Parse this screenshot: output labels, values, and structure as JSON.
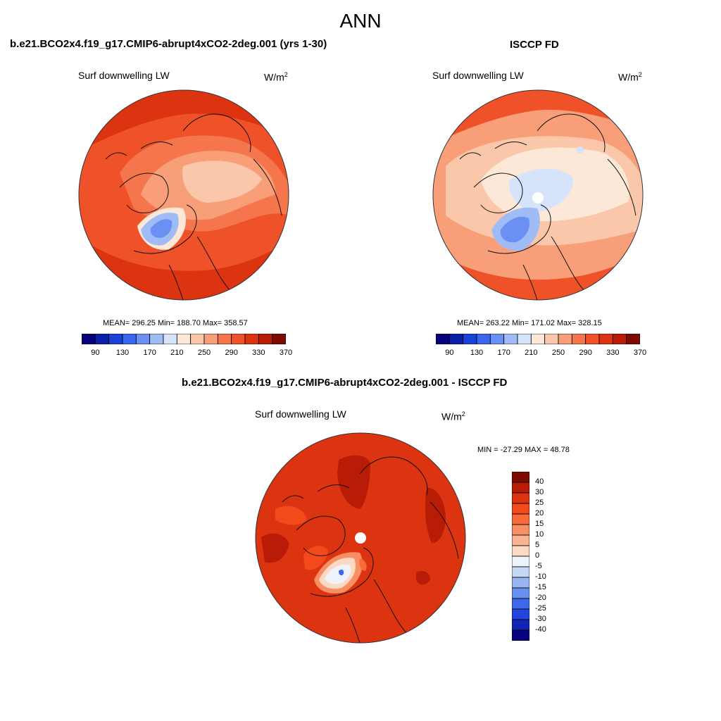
{
  "page": {
    "title": "ANN"
  },
  "panels": [
    {
      "id": "model",
      "title": "b.e21.BCO2x4.f19_g17.CMIP6-abrupt4xCO2-2deg.001 (yrs 1-30)",
      "variable": "Surf downwelling LW",
      "units_base": "W/m",
      "units_exp": "2",
      "stats": "MEAN= 296.25  Min= 188.70  Max= 358.57"
    },
    {
      "id": "obs",
      "title": "ISCCP FD",
      "variable": "Surf downwelling LW",
      "units_base": "W/m",
      "units_exp": "2",
      "stats": "MEAN= 263.22  Min= 171.02  Max= 328.15"
    },
    {
      "id": "diff",
      "title": "b.e21.BCO2x4.f19_g17.CMIP6-abrupt4xCO2-2deg.001 - ISCCP FD",
      "variable": "Surf downwelling LW",
      "units_base": "W/m",
      "units_exp": "2",
      "stats": "MIN = -27.29 MAX =  48.78"
    }
  ],
  "colorbar_abs": {
    "colors": [
      "#06037a",
      "#0a1ea6",
      "#1a42d6",
      "#3a66ee",
      "#6a90f4",
      "#a0bcf7",
      "#d6e4fb",
      "#fde8d8",
      "#fbc7ab",
      "#f89e78",
      "#f5764d",
      "#ef5128",
      "#dc3410",
      "#b81b06",
      "#7e0b02"
    ],
    "tick_labels": [
      "90",
      "130",
      "170",
      "210",
      "250",
      "290",
      "330",
      "370"
    ]
  },
  "colorbar_diff": {
    "colors": [
      "#7e0b02",
      "#b81b06",
      "#dc3410",
      "#f24a1a",
      "#f66a3c",
      "#f88e64",
      "#fab394",
      "#fcd9c2",
      "#eef2fb",
      "#c6d8f6",
      "#97b5f1",
      "#6a90ee",
      "#3f67ea",
      "#2445dc",
      "#1224b4",
      "#07037e"
    ],
    "tick_labels": [
      "40",
      "30",
      "25",
      "20",
      "15",
      "10",
      "5",
      "0",
      "-5",
      "-10",
      "-15",
      "-20",
      "-25",
      "-30",
      "-40"
    ]
  },
  "chart_data": [
    {
      "type": "heatmap",
      "projection": "north polar stereographic",
      "title": "b.e21.BCO2x4.f19_g17.CMIP6-abrupt4xCO2-2deg.001 (yrs 1-30)",
      "variable": "Surf downwelling LW",
      "units": "W/m2",
      "mean": 296.25,
      "min": 188.7,
      "max": 358.57,
      "color_levels": [
        90,
        110,
        130,
        150,
        170,
        190,
        210,
        230,
        250,
        270,
        290,
        310,
        330,
        350,
        370
      ]
    },
    {
      "type": "heatmap",
      "projection": "north polar stereographic",
      "title": "ISCCP FD",
      "variable": "Surf downwelling LW",
      "units": "W/m2",
      "mean": 263.22,
      "min": 171.02,
      "max": 328.15,
      "color_levels": [
        90,
        110,
        130,
        150,
        170,
        190,
        210,
        230,
        250,
        270,
        290,
        310,
        330,
        350,
        370
      ]
    },
    {
      "type": "heatmap",
      "projection": "north polar stereographic",
      "title": "b.e21.BCO2x4.f19_g17.CMIP6-abrupt4xCO2-2deg.001 - ISCCP FD",
      "variable": "Surf downwelling LW",
      "units": "W/m2",
      "min": -27.29,
      "max": 48.78,
      "color_levels": [
        -40,
        -30,
        -25,
        -20,
        -15,
        -10,
        -5,
        0,
        5,
        10,
        15,
        20,
        25,
        30,
        40
      ]
    }
  ]
}
